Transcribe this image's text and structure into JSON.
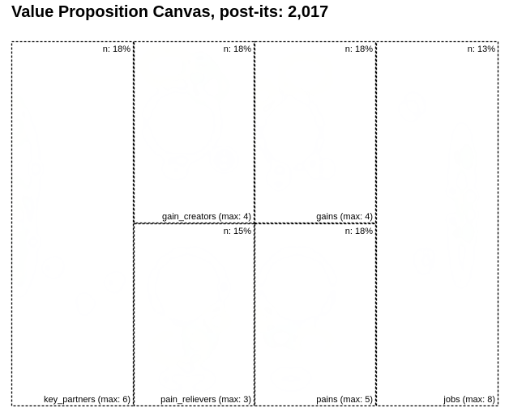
{
  "title": "Value Proposition Canvas, post-its: 2,017",
  "chart_data": {
    "type": "heatmap",
    "title": "Value Proposition Canvas, post-its: 2,017",
    "colorscale": [
      "#ffffff",
      "#d8d8ff",
      "#9c9cff",
      "#66ddcc",
      "#b8ff88",
      "#ffff88",
      "#ffcc88",
      "#ff9999"
    ],
    "panels": [
      {
        "id": "key_partners",
        "label": "key_partners (max: 6)",
        "share": "n: 18%",
        "hotspots": [
          {
            "x": 0.03,
            "y": 0.22,
            "rx": 0.07,
            "ry": 0.06,
            "v": 0.6
          },
          {
            "x": 0.03,
            "y": 0.42,
            "rx": 0.07,
            "ry": 0.04,
            "v": 0.55
          },
          {
            "x": 0.03,
            "y": 0.58,
            "rx": 0.07,
            "ry": 0.07,
            "v": 0.6
          },
          {
            "x": 0.06,
            "y": 0.35,
            "rx": 0.14,
            "ry": 0.16,
            "v": 0.18
          },
          {
            "x": 0.06,
            "y": 0.55,
            "rx": 0.12,
            "ry": 0.14,
            "v": 0.15
          },
          {
            "x": 0.35,
            "y": 0.62,
            "rx": 0.06,
            "ry": 0.02,
            "v": 0.06
          },
          {
            "x": 0.6,
            "y": 0.72,
            "rx": 0.05,
            "ry": 0.02,
            "v": 0.05
          },
          {
            "x": 0.85,
            "y": 0.66,
            "rx": 0.05,
            "ry": 0.02,
            "v": 0.05
          }
        ]
      },
      {
        "id": "gain_creators",
        "label": "gain_creators (max: 4)",
        "share": "n: 18%",
        "hotspots": [
          {
            "x": 0.28,
            "y": 0.14,
            "rx": 0.2,
            "ry": 0.09,
            "v": 0.7
          },
          {
            "x": 0.62,
            "y": 0.25,
            "rx": 0.13,
            "ry": 0.09,
            "v": 0.6
          },
          {
            "x": 0.55,
            "y": 0.15,
            "rx": 0.12,
            "ry": 0.06,
            "v": 0.45
          },
          {
            "x": 0.4,
            "y": 0.45,
            "rx": 0.3,
            "ry": 0.2,
            "v": 0.08
          },
          {
            "x": 0.35,
            "y": 0.7,
            "rx": 0.08,
            "ry": 0.04,
            "v": 0.07
          },
          {
            "x": 0.75,
            "y": 0.65,
            "rx": 0.08,
            "ry": 0.04,
            "v": 0.06
          }
        ]
      },
      {
        "id": "gains",
        "label": "gains (max: 4)",
        "share": "n: 18%",
        "hotspots": [
          {
            "x": 0.42,
            "y": 0.18,
            "rx": 0.2,
            "ry": 0.1,
            "v": 0.72
          },
          {
            "x": 0.08,
            "y": 0.3,
            "rx": 0.08,
            "ry": 0.07,
            "v": 0.7
          },
          {
            "x": 0.3,
            "y": 0.5,
            "rx": 0.25,
            "ry": 0.2,
            "v": 0.08
          },
          {
            "x": 0.55,
            "y": 0.7,
            "rx": 0.08,
            "ry": 0.04,
            "v": 0.07
          },
          {
            "x": 0.2,
            "y": 0.75,
            "rx": 0.07,
            "ry": 0.04,
            "v": 0.06
          }
        ]
      },
      {
        "id": "jobs",
        "label": "jobs (max: 8)",
        "share": "n: 13%",
        "hotspots": [
          {
            "x": 0.72,
            "y": 0.32,
            "rx": 0.04,
            "ry": 0.03,
            "v": 0.6
          },
          {
            "x": 0.72,
            "y": 0.44,
            "rx": 0.04,
            "ry": 0.025,
            "v": 0.55
          },
          {
            "x": 0.72,
            "y": 0.52,
            "rx": 0.04,
            "ry": 0.03,
            "v": 0.6
          },
          {
            "x": 0.7,
            "y": 0.45,
            "rx": 0.08,
            "ry": 0.22,
            "v": 0.14
          },
          {
            "x": 0.3,
            "y": 0.18,
            "rx": 0.08,
            "ry": 0.03,
            "v": 0.06
          },
          {
            "x": 0.4,
            "y": 0.6,
            "rx": 0.06,
            "ry": 0.03,
            "v": 0.05
          }
        ]
      },
      {
        "id": "pain_relievers",
        "label": "pain_relievers (max: 3)",
        "share": "n: 15%",
        "hotspots": [
          {
            "x": 0.38,
            "y": 0.68,
            "rx": 0.22,
            "ry": 0.08,
            "v": 0.72
          },
          {
            "x": 0.68,
            "y": 0.53,
            "rx": 0.09,
            "ry": 0.06,
            "v": 0.75
          },
          {
            "x": 0.55,
            "y": 0.65,
            "rx": 0.12,
            "ry": 0.08,
            "v": 0.4
          },
          {
            "x": 0.45,
            "y": 0.35,
            "rx": 0.3,
            "ry": 0.2,
            "v": 0.08
          },
          {
            "x": 0.45,
            "y": 0.85,
            "rx": 0.2,
            "ry": 0.05,
            "v": 0.08
          }
        ]
      },
      {
        "id": "pains",
        "label": "pains (max: 5)",
        "share": "n: 18%",
        "hotspots": [
          {
            "x": 0.08,
            "y": 0.52,
            "rx": 0.08,
            "ry": 0.05,
            "v": 0.7
          },
          {
            "x": 0.48,
            "y": 0.65,
            "rx": 0.15,
            "ry": 0.06,
            "v": 0.7
          },
          {
            "x": 0.22,
            "y": 0.62,
            "rx": 0.12,
            "ry": 0.05,
            "v": 0.4
          },
          {
            "x": 0.35,
            "y": 0.35,
            "rx": 0.3,
            "ry": 0.2,
            "v": 0.08
          },
          {
            "x": 0.3,
            "y": 0.85,
            "rx": 0.15,
            "ry": 0.04,
            "v": 0.07
          }
        ]
      }
    ]
  }
}
